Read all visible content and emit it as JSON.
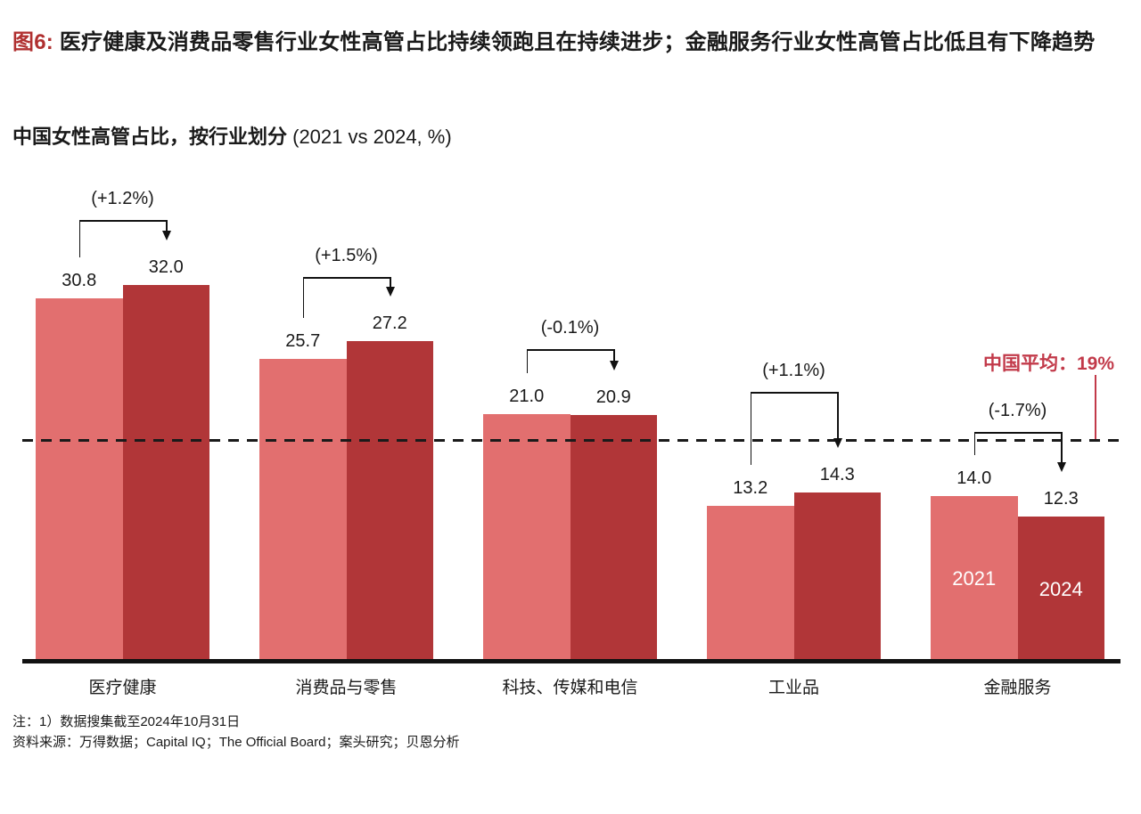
{
  "figure": {
    "tag": "图6:",
    "title": " 医疗健康及消费品零售行业女性高管占比持续领跑且在持续进步；金融服务行业女性高管占比低且有下降趋势",
    "subtitle": "中国女性高管占比，按行业划分 ",
    "subtitle_units": "(2021 vs 2024, %)"
  },
  "chart_data": {
    "type": "bar",
    "title": "中国女性高管占比，按行业划分 (2021 vs 2024, %)",
    "categories": [
      "医疗健康",
      "消费品与零售",
      "科技、传媒和电信",
      "工业品",
      "金融服务"
    ],
    "series": [
      {
        "name": "2021",
        "color": "#E26F6F",
        "values": [
          30.8,
          25.7,
          21.0,
          13.2,
          14.0
        ]
      },
      {
        "name": "2024",
        "color": "#B13638",
        "values": [
          32.0,
          27.2,
          20.9,
          14.3,
          12.3
        ]
      }
    ],
    "delta_labels": [
      "(+1.2%)",
      "(+1.5%)",
      "(-0.1%)",
      "(+1.1%)",
      "(-1.7%)"
    ],
    "average_line": {
      "label": "中国平均：19%",
      "value": 19,
      "style": "dashed",
      "color": "#C23A4A"
    },
    "series_name_labels_shown_on_category": "金融服务",
    "ylim": [
      0,
      34
    ],
    "grid": false,
    "value_labels_shown": true,
    "legend_position": "inside-last-bars"
  },
  "notes": {
    "note1": "注：1）数据搜集截至2024年10月31日",
    "sources": "资料来源：万得数据；Capital IQ；The Official Board；案头研究；贝恩分析"
  },
  "colors": {
    "tag_red": "#B03030",
    "bar_2021": "#E26F6F",
    "bar_2024": "#B13638",
    "average_red": "#C23A4A",
    "axis_black": "#111111",
    "text": "#1A1A1A"
  }
}
